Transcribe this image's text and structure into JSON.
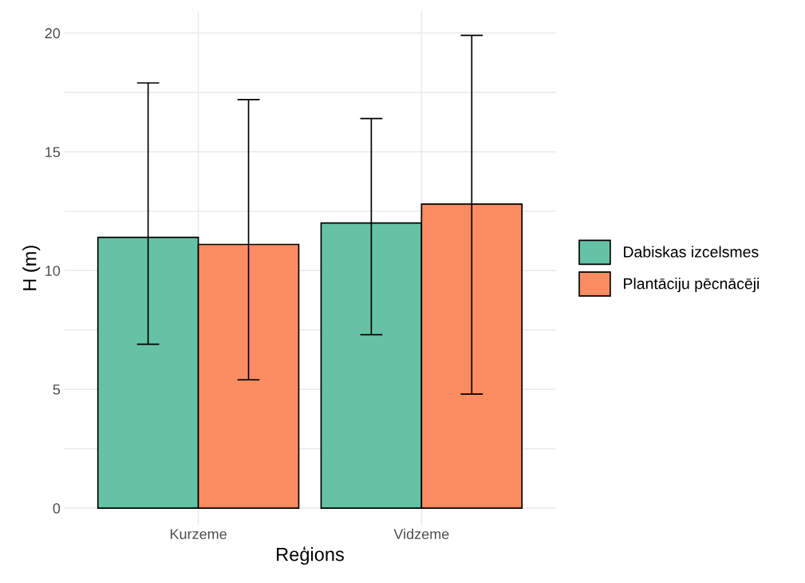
{
  "chart_data": {
    "type": "bar",
    "xlabel": "Reģions",
    "ylabel": "H (m)",
    "categories": [
      "Kurzeme",
      "Vidzeme"
    ],
    "series": [
      {
        "name": "Dabiskas izcelsmes",
        "color": "#66c2a5",
        "values": [
          11.4,
          12.0
        ],
        "errors": [
          [
            6.9,
            17.9
          ],
          [
            7.3,
            16.4
          ]
        ]
      },
      {
        "name": "Plantāciju pēcnācēji",
        "color": "#fc8d62",
        "values": [
          11.1,
          12.8
        ],
        "errors": [
          [
            5.4,
            17.2
          ],
          [
            4.8,
            19.9
          ]
        ]
      }
    ],
    "ylim": [
      -0.7,
      20.9
    ],
    "yticks": [
      0,
      {
        "value": 2.5,
        "label": null
      },
      5,
      {
        "value": 7.5,
        "label": null
      },
      10,
      {
        "value": 12.5,
        "label": null
      },
      15,
      {
        "value": 17.5,
        "label": null
      },
      20
    ],
    "grid": true,
    "legend": "right"
  }
}
